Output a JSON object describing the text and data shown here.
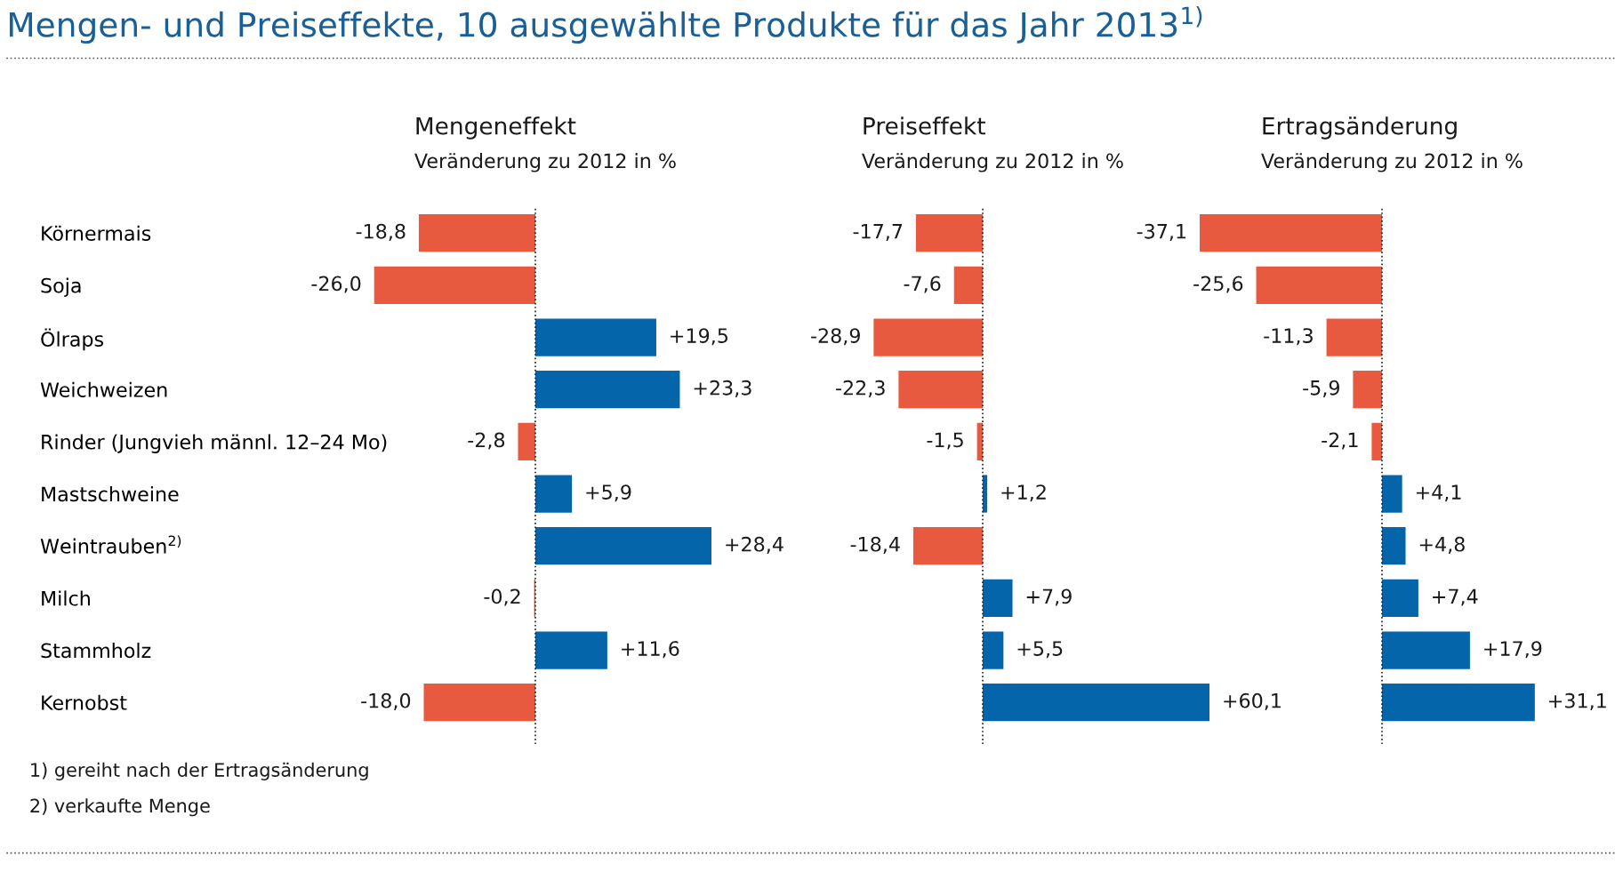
{
  "chart_data": [
    {
      "type": "bar",
      "orientation": "horizontal",
      "title": "Mengeneffekt",
      "subtitle": "Veränderung zu 2012 in %",
      "tick_labels": "y",
      "categories": [
        "Körnermais",
        "Soja",
        "Ölraps",
        "Weichweizen",
        "Rinder (Jungvieh männl. 12–24 Mo)",
        "Mastschweine",
        "Weintrauben$^{2)}$",
        "Milch",
        "Stammholz",
        "Kernobst"
      ],
      "values": [
        -18.8,
        -26.0,
        19.5,
        23.3,
        -2.8,
        5.9,
        28.4,
        -0.2,
        11.6,
        -18.0
      ],
      "value_labels": [
        "-18,8",
        "-26,0",
        "+19,5",
        "+23,3",
        "-2,8",
        "+5,9",
        "+28,4",
        "-0,2",
        "+11,6",
        "-18,0"
      ],
      "colors": [
        "#e85a3f",
        "#e85a3f",
        "#0565ab",
        "#0565ab",
        "#e85a3f",
        "#0565ab",
        "#0565ab",
        "#e85a3f",
        "#0565ab",
        "#e85a3f"
      ],
      "ref_lines": [
        {
          "axis": "x",
          "value": 0,
          "line_style": "dotted",
          "color": "#222222"
        }
      ],
      "annotations": [
        "Mengen- und Preiseffekte, 10 ausgewählte Produkte für das Jahr 2013$^{1)}$",
        "1) gereiht nach der Ertragsänderung",
        "2) verkaufte Menge"
      ]
    },
    {
      "type": "bar",
      "orientation": "horizontal",
      "title": "Preiseffekt",
      "subtitle": "Veränderung zu 2012 in %",
      "tick_labels": false,
      "values": [
        -17.7,
        -7.6,
        -28.9,
        -22.3,
        -1.5,
        1.2,
        -18.4,
        7.9,
        5.5,
        60.1
      ],
      "value_labels": [
        "-17,7",
        "-7,6",
        "-28,9",
        "-22,3",
        "-1,5",
        "+1,2",
        "-18,4",
        "+7,9",
        "+5,5",
        "+60,1"
      ],
      "colors": [
        "#e85a3f",
        "#e85a3f",
        "#e85a3f",
        "#e85a3f",
        "#e85a3f",
        "#0565ab",
        "#e85a3f",
        "#0565ab",
        "#0565ab",
        "#0565ab"
      ],
      "ref_lines": [
        {
          "axis": "x",
          "value": 0,
          "line_style": "dotted",
          "color": "#222222"
        }
      ]
    },
    {
      "type": "bar",
      "orientation": "horizontal",
      "title": "Ertragsänderung",
      "subtitle": "Veränderung zu 2012 in %",
      "tick_labels": false,
      "values": [
        -37.1,
        -25.6,
        -11.3,
        -5.9,
        -2.1,
        4.1,
        4.8,
        7.4,
        17.9,
        31.1
      ],
      "value_labels": [
        "-37,1",
        "-25,6",
        "-11,3",
        "-5,9",
        "-2,1",
        "+4,1",
        "+4,8",
        "+7,4",
        "+17,9",
        "+31,1"
      ],
      "colors": [
        "#e85a3f",
        "#e85a3f",
        "#e85a3f",
        "#e85a3f",
        "#e85a3f",
        "#0565ab",
        "#0565ab",
        "#0565ab",
        "#0565ab",
        "#0565ab"
      ],
      "ref_lines": [
        {
          "axis": "x",
          "value": 0,
          "line_style": "dotted",
          "color": "#222222"
        }
      ]
    }
  ]
}
